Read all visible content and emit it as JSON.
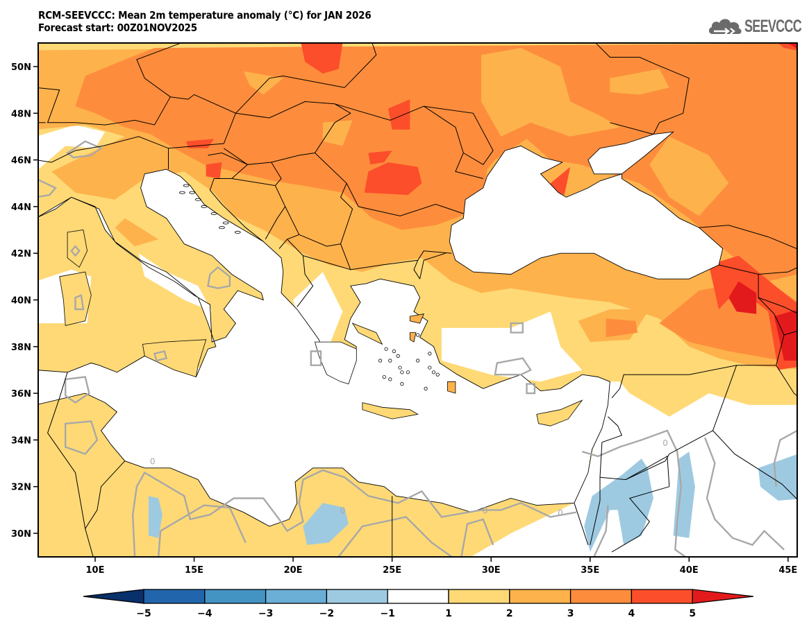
{
  "header": {
    "title_line1": "RCM-SEEVCCC: Mean 2m temperature anomaly (°C) for JAN 2026",
    "title_line2": "Forecast start: 00Z01NOV2025",
    "logo_text": "SEEVCCC",
    "logo_icon": "cloud-icon"
  },
  "map": {
    "lon_range": [
      7,
      46
    ],
    "lat_range": [
      29,
      51
    ],
    "lon_ticks": [
      {
        "value": 10,
        "label": "10E"
      },
      {
        "value": 15,
        "label": "15E"
      },
      {
        "value": 20,
        "label": "20E"
      },
      {
        "value": 25,
        "label": "25E"
      },
      {
        "value": 30,
        "label": "30E"
      },
      {
        "value": 35,
        "label": "35E"
      },
      {
        "value": 40,
        "label": "40E"
      },
      {
        "value": 45,
        "label": "45E"
      }
    ],
    "lat_ticks": [
      {
        "value": 50,
        "label": "50N"
      },
      {
        "value": 48,
        "label": "48N"
      },
      {
        "value": 46,
        "label": "46N"
      },
      {
        "value": 44,
        "label": "44N"
      },
      {
        "value": 42,
        "label": "42N"
      },
      {
        "value": 40,
        "label": "40N"
      },
      {
        "value": 38,
        "label": "38N"
      },
      {
        "value": 36,
        "label": "36N"
      },
      {
        "value": 34,
        "label": "34N"
      },
      {
        "value": 32,
        "label": "32N"
      },
      {
        "value": 30,
        "label": "30N"
      }
    ],
    "zero_contour_label": "0"
  },
  "colorbar": {
    "levels": [
      -5,
      -4,
      -3,
      -2,
      -1,
      1,
      2,
      3,
      4,
      5
    ],
    "labels": [
      "−5",
      "−4",
      "−3",
      "−2",
      "−1",
      "1",
      "2",
      "3",
      "4",
      "5"
    ],
    "colors": {
      "below_min": "#08306b",
      "bins": [
        "#2166ac",
        "#4393c3",
        "#6baed6",
        "#9ecae1",
        "#ffffff",
        "#fed976",
        "#feb24c",
        "#fd8d3c",
        "#fc4e2a"
      ],
      "above_max": "#e31a1c"
    }
  },
  "field_colors": {
    "c1": "#fed976",
    "c2": "#feb24c",
    "c3": "#fd8d3c",
    "c4": "#fc4e2a",
    "c5": "#e31a1c",
    "neg1": "#9ecae1",
    "zero_contour": "#a8a8a8",
    "border": "#000000"
  }
}
